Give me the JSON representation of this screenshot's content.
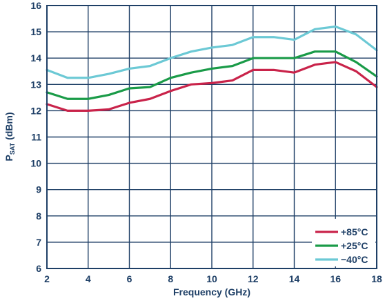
{
  "chart_data": {
    "type": "line",
    "xlabel": "Frequency (GHz)",
    "ylabel_main": "P",
    "ylabel_sub": "SAT",
    "ylabel_tail": " (dBm)",
    "xlim": [
      2,
      18
    ],
    "ylim": [
      6,
      16
    ],
    "xticks": [
      2,
      4,
      6,
      8,
      10,
      12,
      14,
      16,
      18
    ],
    "yticks": [
      6,
      7,
      8,
      9,
      10,
      11,
      12,
      13,
      14,
      15,
      16
    ],
    "grid": true,
    "legend_position": "bottom-right",
    "x": [
      2,
      3,
      4,
      5,
      6,
      7,
      8,
      9,
      10,
      11,
      12,
      13,
      14,
      15,
      16,
      17,
      18
    ],
    "series": [
      {
        "name": "+85°C",
        "color": "#c9234a",
        "values": [
          12.25,
          12.0,
          12.0,
          12.05,
          12.3,
          12.45,
          12.75,
          13.0,
          13.05,
          13.15,
          13.55,
          13.55,
          13.45,
          13.75,
          13.85,
          13.5,
          12.9
        ]
      },
      {
        "name": "+25°C",
        "color": "#1a9b48",
        "values": [
          12.7,
          12.45,
          12.45,
          12.6,
          12.85,
          12.9,
          13.25,
          13.45,
          13.6,
          13.7,
          14.0,
          14.0,
          14.0,
          14.25,
          14.25,
          13.85,
          13.3
        ]
      },
      {
        "name": "−40°C",
        "color": "#6cc9d5",
        "values": [
          13.55,
          13.25,
          13.25,
          13.4,
          13.6,
          13.7,
          14.0,
          14.25,
          14.4,
          14.5,
          14.8,
          14.8,
          14.7,
          15.1,
          15.2,
          14.9,
          14.3
        ]
      }
    ]
  }
}
